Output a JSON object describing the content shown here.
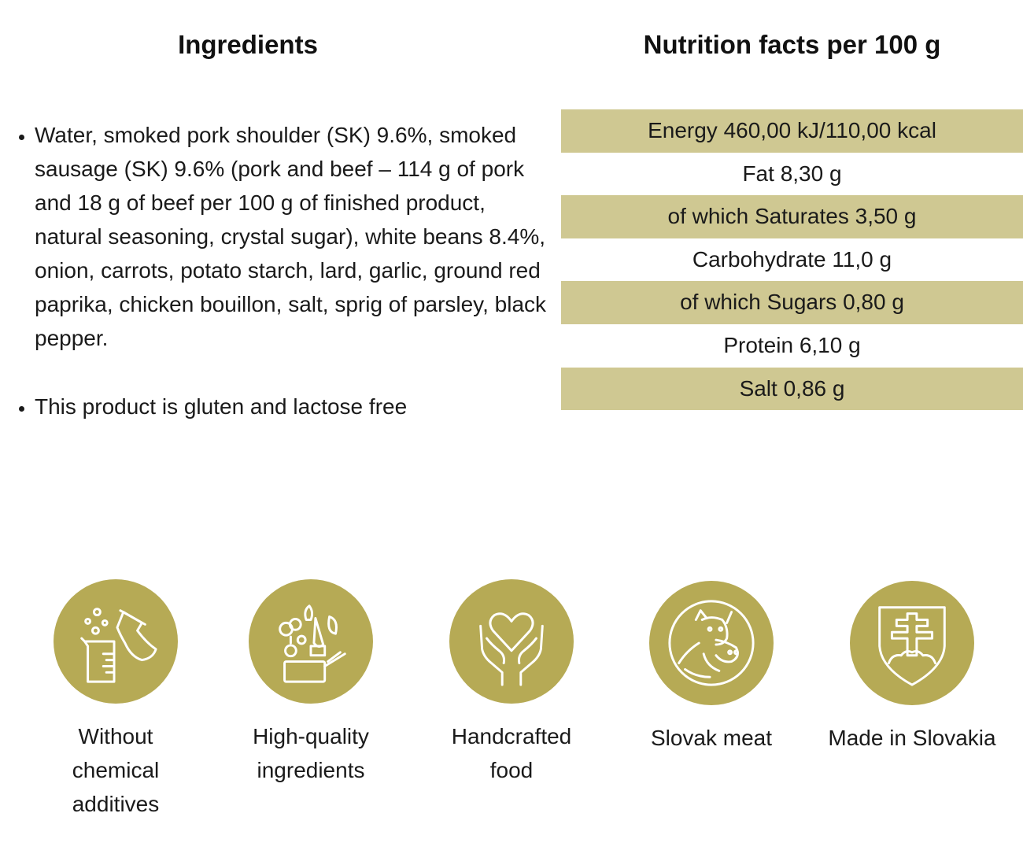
{
  "ingredients": {
    "title": "Ingredients",
    "items": [
      "Water, smoked pork shoulder (SK) 9.6%, smoked sausage (SK) 9.6% (pork and beef – 114 g of pork and 18 g of beef per 100 g of finished product, natural seasoning, crystal sugar), white beans 8.4%, onion, carrots, potato starch, lard, garlic, ground red paprika, chicken bouillon, salt, sprig of parsley, black pepper.",
      "This product is gluten and lactose free"
    ]
  },
  "nutrition": {
    "title": "Nutrition facts per 100 g",
    "rows": [
      "Energy 460,00 kJ/110,00 kcal",
      "Fat 8,30 g",
      "of which Saturates 3,50 g",
      "Carbohydrate 11,0 g",
      "of which Sugars 0,80 g",
      "Protein 6,10 g",
      "Salt 0,86 g"
    ],
    "stripe_color": "#cfc892"
  },
  "badges": [
    {
      "icon": "chemistry-flask-icon",
      "label": "Without\nchemical\n additives"
    },
    {
      "icon": "vegetables-box-icon",
      "label": "High-quality\n ingredients"
    },
    {
      "icon": "heart-hands-icon",
      "label": "Handcrafted\n food"
    },
    {
      "icon": "pig-cow-icon",
      "label": "Slovak meat"
    },
    {
      "icon": "slovak-coat-of-arms-icon",
      "label": "Made in Slovakia"
    }
  ],
  "badge_color": "#b6aa55"
}
